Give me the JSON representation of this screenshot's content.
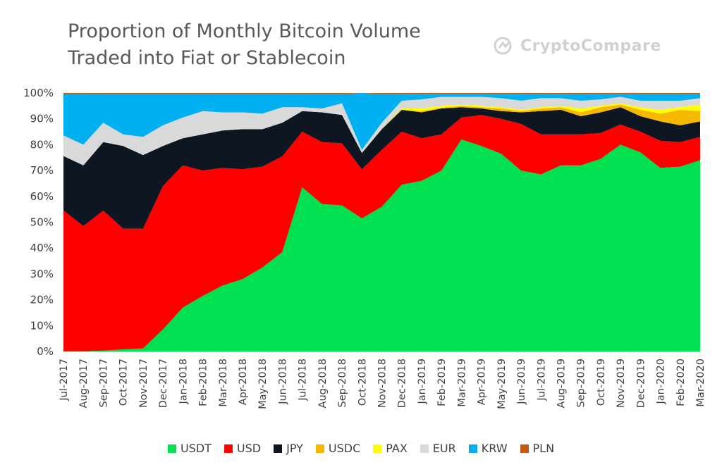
{
  "chart_data": {
    "type": "area",
    "stacked": true,
    "percent": true,
    "title_lines": [
      "Proportion of Monthly Bitcoin Volume",
      "Traded into Fiat or Stablecoin"
    ],
    "watermark": "CryptoCompare",
    "categories": [
      "Jul-2017",
      "Aug-2017",
      "Sep-2017",
      "Oct-2017",
      "Nov-2017",
      "Dec-2017",
      "Jan-2018",
      "Feb-2018",
      "Mar-2018",
      "Apr-2018",
      "May-2018",
      "Jun-2018",
      "Jul-2018",
      "Aug-2018",
      "Sep-2018",
      "Oct-2018",
      "Nov-2018",
      "Dec-2018",
      "Jan-2019",
      "Feb-2019",
      "Mar-2019",
      "Apr-2019",
      "May-2019",
      "Jun-2019",
      "Jul-2019",
      "Aug-2019",
      "Sep-2019",
      "Oct-2019",
      "Nov-2019",
      "Dec-2019",
      "Jan-2020",
      "Feb-2020",
      "Mar-2020"
    ],
    "y_ticks": [
      "0%",
      "10%",
      "20%",
      "30%",
      "40%",
      "50%",
      "60%",
      "70%",
      "80%",
      "90%",
      "100%"
    ],
    "ylim": [
      0,
      100
    ],
    "grid": false,
    "legend_position": "bottom",
    "series": [
      {
        "name": "USDT",
        "color": "#00E050",
        "values": [
          0.1,
          0.1,
          0.3,
          0.8,
          1.2,
          8.5,
          17.0,
          21.5,
          25.5,
          28.0,
          32.5,
          38.5,
          63.5,
          57.0,
          56.5,
          51.5,
          56.0,
          64.5,
          66.0,
          70.0,
          82.0,
          79.5,
          76.5,
          70.0,
          68.5,
          72.0,
          72.0,
          74.5,
          80.0,
          77.0,
          71.0,
          71.5,
          74.0
        ]
      },
      {
        "name": "USD",
        "color": "#FF0000",
        "values": [
          54.5,
          48.4,
          54.2,
          46.7,
          46.3,
          55.5,
          55.0,
          48.5,
          45.5,
          42.5,
          39.0,
          37.0,
          21.5,
          24.0,
          24.0,
          19.0,
          22.0,
          20.5,
          16.5,
          14.0,
          8.5,
          12.0,
          13.5,
          18.0,
          15.5,
          12.0,
          12.0,
          10.0,
          7.8,
          8.0,
          10.5,
          9.5,
          9.0
        ]
      },
      {
        "name": "JPY",
        "color": "#0E1621",
        "values": [
          21.0,
          23.5,
          26.5,
          32.0,
          28.5,
          15.5,
          10.5,
          14.0,
          14.5,
          15.5,
          14.5,
          13.0,
          8.0,
          11.5,
          11.0,
          6.3,
          8.0,
          8.5,
          10.0,
          10.0,
          4.0,
          2.5,
          3.0,
          4.5,
          9.0,
          9.5,
          7.0,
          8.0,
          6.7,
          6.0,
          7.5,
          6.5,
          6.0
        ]
      },
      {
        "name": "USDC",
        "color": "#F6B800",
        "values": [
          0,
          0,
          0,
          0,
          0,
          0,
          0,
          0,
          0,
          0,
          0,
          0,
          0,
          0,
          0,
          0,
          0,
          0,
          0.5,
          0.3,
          0.5,
          0.5,
          1.0,
          0.5,
          1.0,
          1.0,
          1.5,
          2.0,
          1.0,
          2.5,
          3.0,
          6.0,
          4.0
        ]
      },
      {
        "name": "PAX",
        "color": "#FFFF00",
        "values": [
          0,
          0,
          0,
          0,
          0,
          0,
          0,
          0,
          0,
          0,
          0,
          0,
          0,
          0,
          0,
          0,
          0,
          0.5,
          1.0,
          0.7,
          0.5,
          0.5,
          0.5,
          0.5,
          0.5,
          0.5,
          1.5,
          0.5,
          0.5,
          1.0,
          1.5,
          1.0,
          2.5
        ]
      },
      {
        "name": "EUR",
        "color": "#D9D9D9",
        "values": [
          8.0,
          8.0,
          7.5,
          4.5,
          7.0,
          8.0,
          8.0,
          9.0,
          7.0,
          6.5,
          6.0,
          6.0,
          1.5,
          1.5,
          4.5,
          1.2,
          2.5,
          3.0,
          3.5,
          3.5,
          3.0,
          3.5,
          3.5,
          3.5,
          3.5,
          3.0,
          3.0,
          2.5,
          2.5,
          2.5,
          3.5,
          2.5,
          2.5
        ]
      },
      {
        "name": "KRW",
        "color": "#00B0F0",
        "values": [
          16.0,
          19.6,
          11.0,
          15.5,
          16.5,
          12.0,
          9.0,
          6.5,
          7.0,
          7.0,
          7.5,
          5.0,
          5.0,
          5.5,
          3.5,
          22.0,
          11.0,
          2.5,
          2.0,
          1.0,
          1.0,
          1.0,
          1.5,
          2.5,
          1.5,
          1.5,
          2.5,
          2.0,
          1.0,
          2.5,
          2.5,
          2.5,
          1.5
        ]
      },
      {
        "name": "PLN",
        "color": "#C55A11",
        "values": [
          0.4,
          0.4,
          0.5,
          0.5,
          0.5,
          0.5,
          0.5,
          0.5,
          0.5,
          0.5,
          0.5,
          0.5,
          0.5,
          0.5,
          0.5,
          0.5,
          0.5,
          0.5,
          0.5,
          0.5,
          0.5,
          0.5,
          0.5,
          0.5,
          0.5,
          0.5,
          0.5,
          0.5,
          0.5,
          0.5,
          0.5,
          0.5,
          0.5
        ]
      }
    ]
  }
}
